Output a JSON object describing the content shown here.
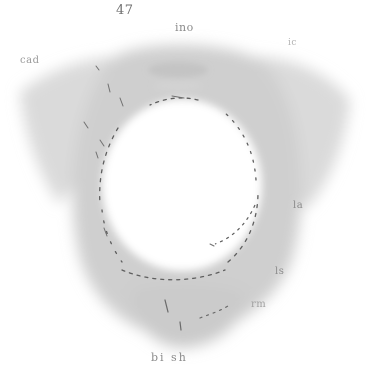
{
  "figure": {
    "labels": {
      "plate_number": "47",
      "ino": "ino",
      "top_right": "ic",
      "cad": "cad",
      "la": "la",
      "ls": "ls",
      "rm": "rm",
      "bottom": "bi  sh"
    },
    "colors": {
      "background": "#ffffff",
      "wing_shading": "#d6d6d6",
      "body_shading": "#c9c9c9",
      "hole_fill": "#ffffff",
      "dash_stroke": "#5a5a5a",
      "label_text": "#8a8a8a"
    }
  }
}
